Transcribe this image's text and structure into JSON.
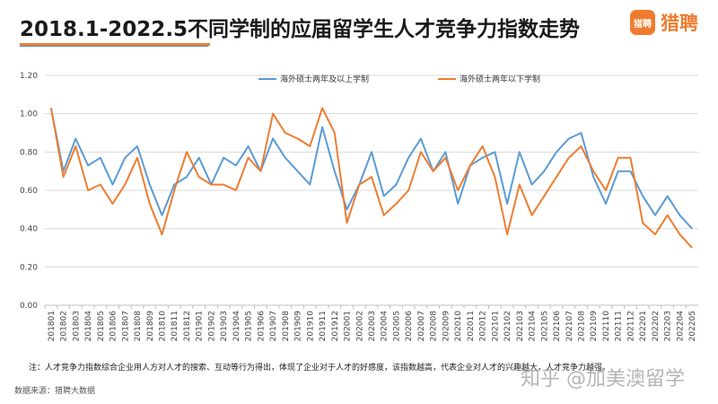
{
  "header": {
    "title": "2018.1-2022.5不同学制的应届留学生人才竞争力指数走势",
    "logo_mark": "猎聘",
    "logo_text": "猎聘"
  },
  "footer": {
    "note": "注：人才竞争力指数综合企业用人方对人才的搜索、互动等行为得出，体现了企业对于人才的好感度，该指数越高，代表企业对人才的兴趣越大，人才竞争力越强。",
    "source": "数据来源：猎聘大数据",
    "watermark": "知乎 @加美澳留学"
  },
  "colors": {
    "series1": "#5b9bd5",
    "series2": "#ed7d31",
    "accent": "#f07b2e"
  },
  "chart_data": {
    "type": "line",
    "title": "2018.1-2022.5不同学制的应届留学生人才竞争力指数走势",
    "xlabel": "",
    "ylabel": "",
    "ylim": [
      0,
      1.2
    ],
    "yticks": [
      "0.00",
      "0.20",
      "0.40",
      "0.60",
      "0.80",
      "1.00",
      "1.20"
    ],
    "grid": true,
    "legend_position": "top",
    "x": [
      "201801",
      "201802",
      "201803",
      "201804",
      "201805",
      "201806",
      "201807",
      "201808",
      "201809",
      "201810",
      "201811",
      "201812",
      "201901",
      "201902",
      "201903",
      "201904",
      "201905",
      "201906",
      "201907",
      "201908",
      "201909",
      "201910",
      "201911",
      "201912",
      "202001",
      "202002",
      "202003",
      "202004",
      "202005",
      "202006",
      "202007",
      "202008",
      "202009",
      "202010",
      "202011",
      "202012",
      "202101",
      "202102",
      "202103",
      "202104",
      "202105",
      "202106",
      "202107",
      "202108",
      "202109",
      "202110",
      "202111",
      "202112",
      "202201",
      "202202",
      "202203",
      "202204",
      "202205"
    ],
    "series": [
      {
        "name": "海外硕士两年及以上学制",
        "values": [
          1.03,
          0.7,
          0.87,
          0.73,
          0.77,
          0.63,
          0.77,
          0.83,
          0.63,
          0.47,
          0.63,
          0.67,
          0.77,
          0.63,
          0.77,
          0.73,
          0.83,
          0.7,
          0.87,
          0.77,
          0.7,
          0.63,
          0.93,
          0.7,
          0.5,
          0.63,
          0.8,
          0.57,
          0.63,
          0.77,
          0.87,
          0.7,
          0.8,
          0.53,
          0.73,
          0.77,
          0.8,
          0.53,
          0.8,
          0.63,
          0.7,
          0.8,
          0.87,
          0.9,
          0.67,
          0.53,
          0.7,
          0.7,
          0.57,
          0.47,
          0.57,
          0.47,
          0.4
        ]
      },
      {
        "name": "海外硕士两年以下学制",
        "values": [
          1.03,
          0.67,
          0.83,
          0.6,
          0.63,
          0.53,
          0.63,
          0.77,
          0.53,
          0.37,
          0.6,
          0.8,
          0.67,
          0.63,
          0.63,
          0.6,
          0.77,
          0.7,
          1.0,
          0.9,
          0.87,
          0.83,
          1.03,
          0.9,
          0.43,
          0.63,
          0.67,
          0.47,
          0.53,
          0.6,
          0.8,
          0.7,
          0.77,
          0.6,
          0.73,
          0.83,
          0.67,
          0.37,
          0.63,
          0.47,
          0.57,
          0.67,
          0.77,
          0.83,
          0.7,
          0.6,
          0.77,
          0.77,
          0.43,
          0.37,
          0.47,
          0.37,
          0.3
        ]
      }
    ]
  }
}
